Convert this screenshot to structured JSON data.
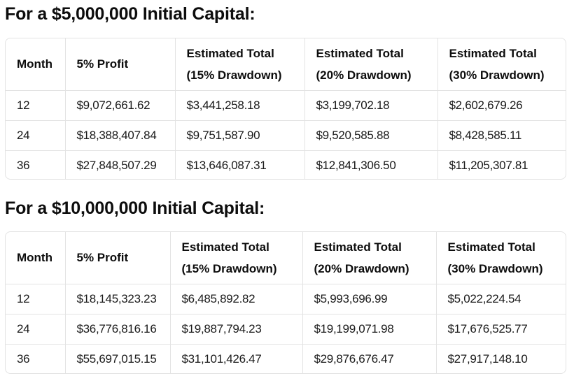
{
  "section1": {
    "title": "For a $5,000,000 Initial Capital:",
    "headers": [
      [
        "Month"
      ],
      [
        "5% Profit"
      ],
      [
        "Estimated Total",
        "(15% Drawdown)"
      ],
      [
        "Estimated Total",
        "(20% Drawdown)"
      ],
      [
        "Estimated Total",
        "(30% Drawdown)"
      ]
    ],
    "rows": [
      [
        "12",
        "$9,072,661.62",
        "$3,441,258.18",
        "$3,199,702.18",
        "$2,602,679.26"
      ],
      [
        "24",
        "$18,388,407.84",
        "$9,751,587.90",
        "$9,520,585.88",
        "$8,428,585.11"
      ],
      [
        "36",
        "$27,848,507.29",
        "$13,646,087.31",
        "$12,841,306.50",
        "$11,205,307.81"
      ]
    ]
  },
  "section2": {
    "title": "For a $10,000,000 Initial Capital:",
    "headers": [
      [
        "Month"
      ],
      [
        "5% Profit"
      ],
      [
        "Estimated Total",
        "(15% Drawdown)"
      ],
      [
        "Estimated Total",
        "(20% Drawdown)"
      ],
      [
        "Estimated Total",
        "(30% Drawdown)"
      ]
    ],
    "rows": [
      [
        "12",
        "$18,145,323.23",
        "$6,485,892.82",
        "$5,993,696.99",
        "$5,022,224.54"
      ],
      [
        "24",
        "$36,776,816.16",
        "$19,887,794.23",
        "$19,199,071.98",
        "$17,676,525.77"
      ],
      [
        "36",
        "$55,697,015.15",
        "$31,101,426.47",
        "$29,876,676.47",
        "$27,917,148.10"
      ]
    ]
  }
}
